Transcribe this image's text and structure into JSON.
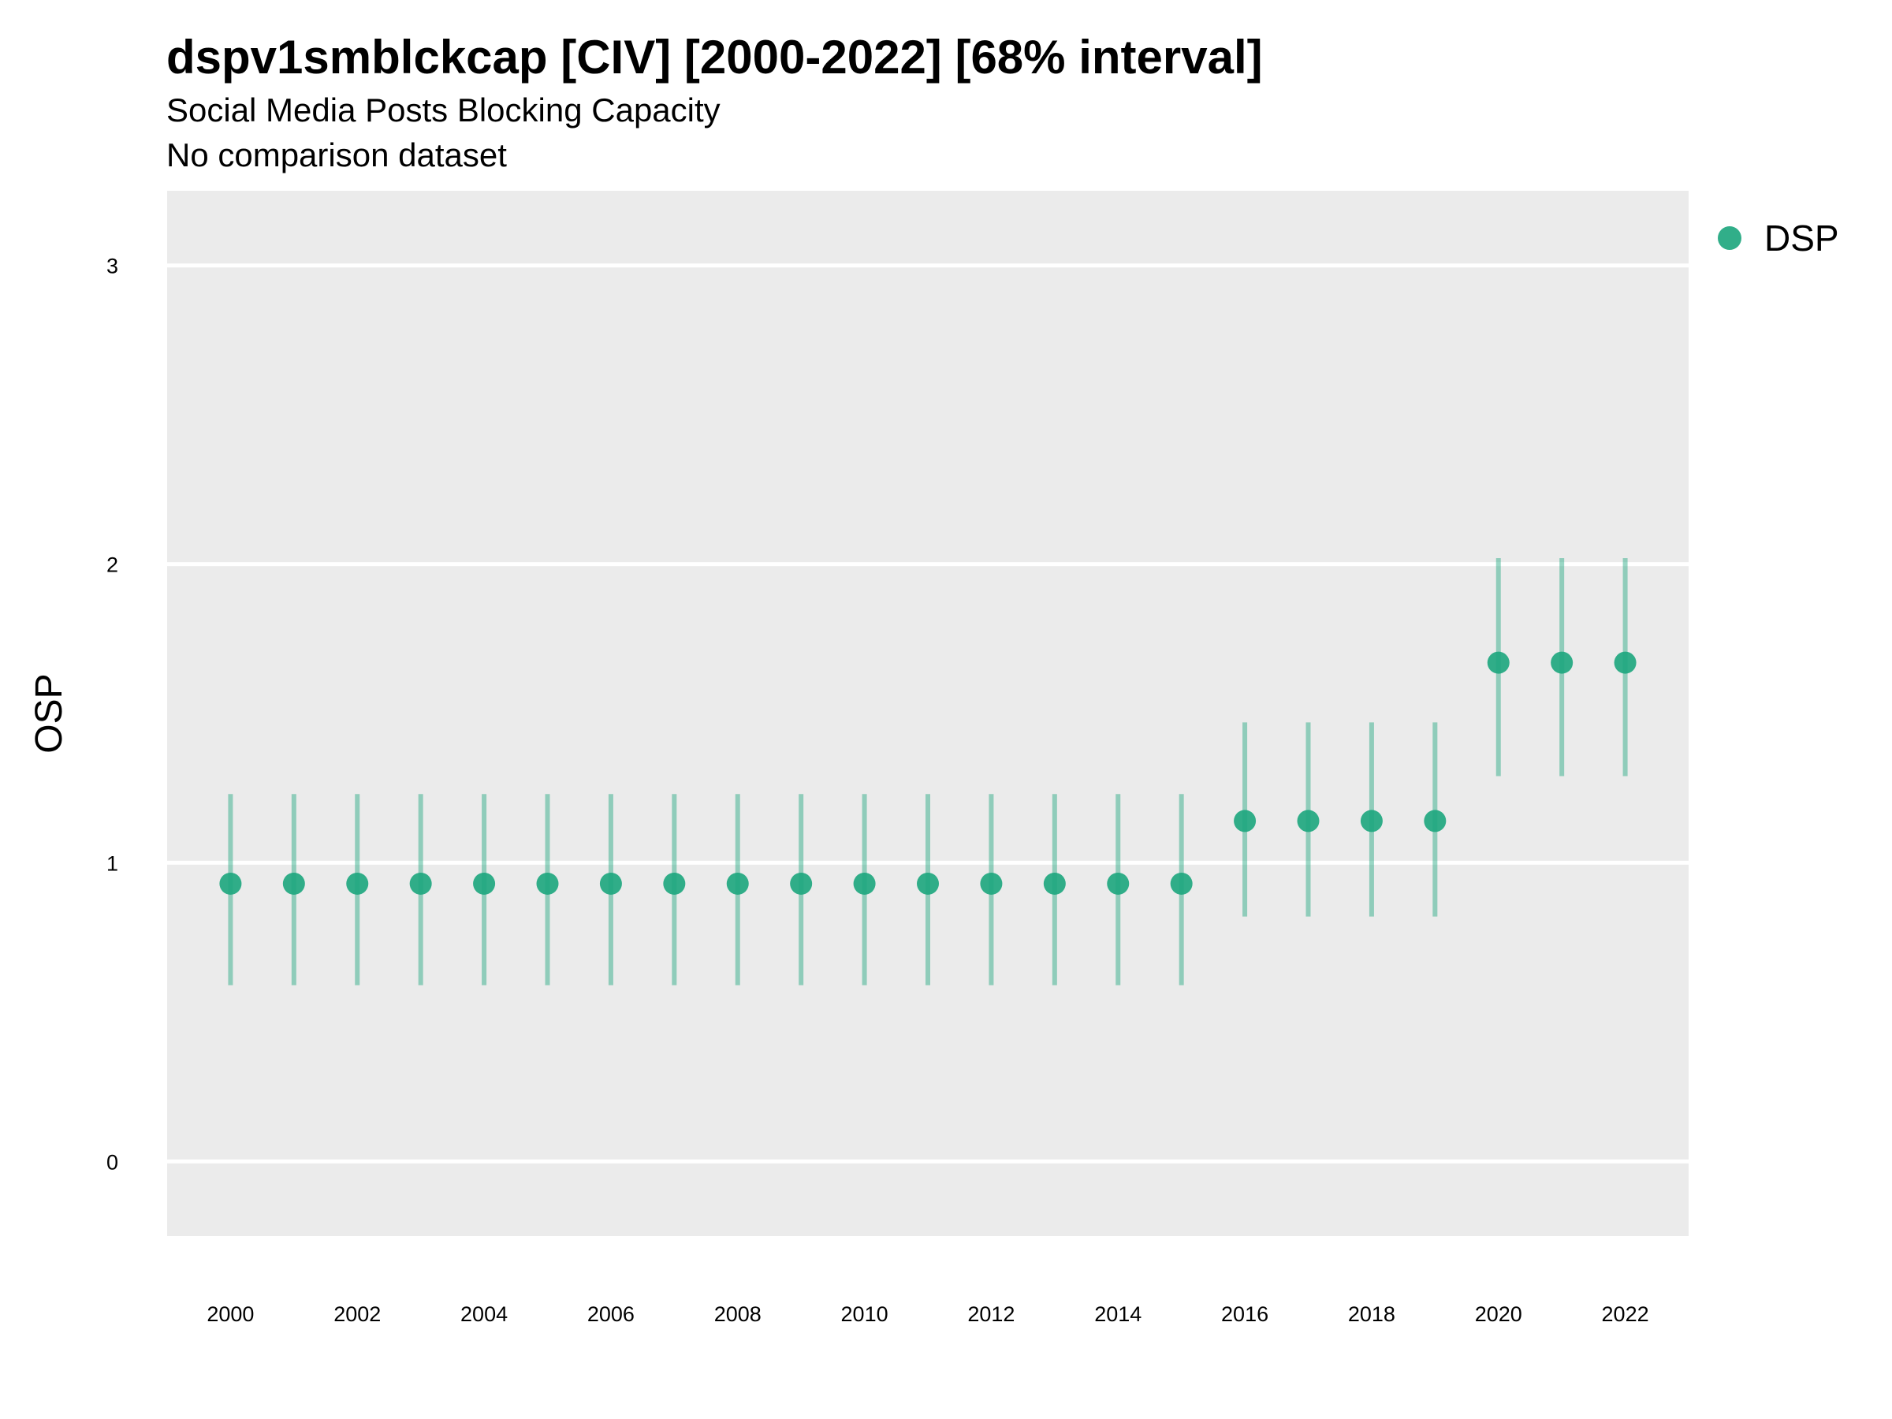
{
  "chart_data": {
    "type": "scatter",
    "title": "dspv1smblckcap [CIV] [2000-2022] [68% interval]",
    "subtitle": "Social Media Posts Blocking Capacity",
    "subtitle2": "No comparison dataset",
    "ylabel": "OSP",
    "xlabel": "",
    "ylim": [
      -0.25,
      3.25
    ],
    "yticks": [
      0,
      1,
      2,
      3
    ],
    "xlim": [
      1999,
      2023
    ],
    "xticks": [
      2000,
      2002,
      2004,
      2006,
      2008,
      2010,
      2012,
      2014,
      2016,
      2018,
      2020,
      2022
    ],
    "grid": true,
    "legend_position": "top-right",
    "series": [
      {
        "name": "DSP",
        "color": "#1fa77f",
        "x": [
          2000,
          2001,
          2002,
          2003,
          2004,
          2005,
          2006,
          2007,
          2008,
          2009,
          2010,
          2011,
          2012,
          2013,
          2014,
          2015,
          2016,
          2017,
          2018,
          2019,
          2020,
          2021,
          2022
        ],
        "y": [
          0.93,
          0.93,
          0.93,
          0.93,
          0.93,
          0.93,
          0.93,
          0.93,
          0.93,
          0.93,
          0.93,
          0.93,
          0.93,
          0.93,
          0.93,
          0.93,
          1.14,
          1.14,
          1.14,
          1.14,
          1.67,
          1.67,
          1.67
        ],
        "lower": [
          0.59,
          0.59,
          0.59,
          0.59,
          0.59,
          0.59,
          0.59,
          0.59,
          0.59,
          0.59,
          0.59,
          0.59,
          0.59,
          0.59,
          0.59,
          0.59,
          0.82,
          0.82,
          0.82,
          0.82,
          1.29,
          1.29,
          1.29
        ],
        "upper": [
          1.23,
          1.23,
          1.23,
          1.23,
          1.23,
          1.23,
          1.23,
          1.23,
          1.23,
          1.23,
          1.23,
          1.23,
          1.23,
          1.23,
          1.23,
          1.23,
          1.47,
          1.47,
          1.47,
          1.47,
          2.02,
          2.02,
          2.02
        ]
      }
    ]
  }
}
